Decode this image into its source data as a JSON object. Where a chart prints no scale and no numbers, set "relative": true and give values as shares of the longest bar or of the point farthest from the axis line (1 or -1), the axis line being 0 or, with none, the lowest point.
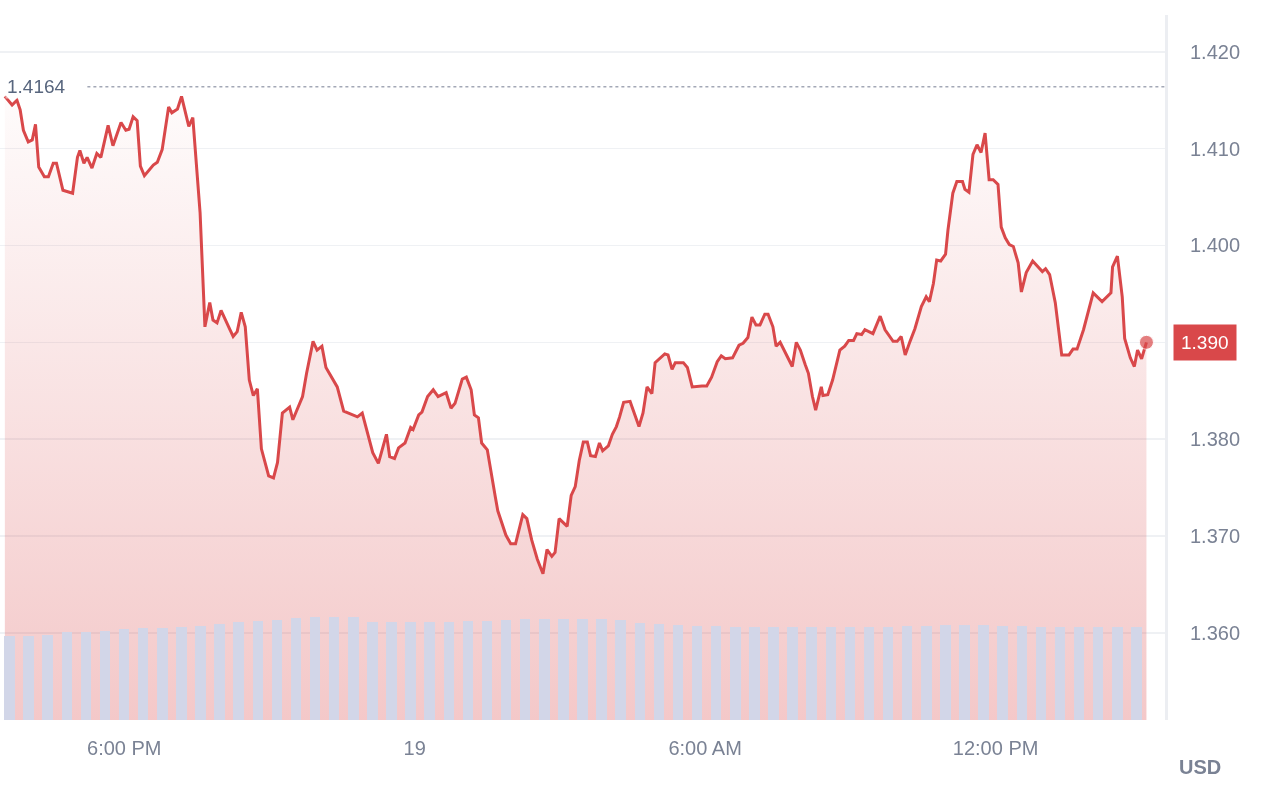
{
  "chart_data": [
    {
      "type": "area",
      "x": [
        "--03-18T15:32",
        "--03-18T15:41",
        "--03-18T15:47",
        "--03-18T15:51",
        "--03-18T15:55",
        "--03-18T16:01",
        "--03-18T16:06",
        "--03-18T16:10",
        "--03-18T16:14",
        "--03-18T16:21",
        "--03-18T16:26",
        "--03-18T16:32",
        "--03-18T16:36",
        "--03-18T16:44",
        "--03-18T16:56",
        "--03-18T17:02",
        "--03-18T17:05",
        "--03-18T17:10",
        "--03-18T17:14",
        "--03-18T17:20",
        "--03-18T17:26",
        "--03-18T17:31",
        "--03-18T17:40",
        "--03-18T17:46",
        "--03-18T17:56",
        "--03-18T18:02",
        "--03-18T18:06",
        "--03-18T18:11",
        "--03-18T18:16",
        "--03-18T18:20",
        "--03-18T18:25",
        "--03-18T18:36",
        "--03-18T18:41",
        "--03-18T18:47",
        "--03-18T18:55",
        "--03-18T18:59",
        "--03-18T19:06",
        "--03-18T19:11",
        "--03-18T19:20",
        "--03-18T19:25",
        "--03-18T19:34",
        "--03-18T19:40",
        "--03-18T19:46",
        "--03-18T19:50",
        "--03-18T19:55",
        "--03-18T20:00",
        "--03-18T20:11",
        "--03-18T20:15",
        "--03-18T20:20",
        "--03-18T20:25",
        "--03-18T20:30",
        "--03-18T20:35",
        "--03-18T20:40",
        "--03-18T20:45",
        "--03-18T20:50",
        "--03-18T20:59",
        "--03-18T21:05",
        "--03-18T21:10",
        "--03-18T21:16",
        "--03-18T21:25",
        "--03-18T21:29",
        "--03-18T21:41",
        "--03-18T21:46",
        "--03-18T21:54",
        "--03-18T21:59",
        "--03-18T22:05",
        "--03-18T22:10",
        "--03-18T22:24",
        "--03-18T22:32",
        "--03-18T22:49",
        "--03-18T22:55",
        "--03-18T23:08",
        "--03-18T23:15",
        "--03-18T23:25",
        "--03-18T23:29",
        "--03-18T23:35",
        "--03-18T23:40",
        "--03-18T23:48",
        "--03-18T23:55",
        "--03-18T23:58",
        "--03-19T00:05",
        "--03-19T00:09",
        "--03-19T00:16",
        "--03-19T00:23",
        "--03-19T00:29",
        "--03-19T00:39",
        "--03-19T00:45",
        "--03-19T00:50",
        "--03-19T00:59",
        "--03-19T01:04",
        "--03-19T01:10",
        "--03-19T01:14",
        "--03-19T01:19",
        "--03-19T01:23",
        "--03-19T01:30",
        "--03-19T01:40",
        "--03-19T01:43",
        "--03-19T01:53",
        "--03-19T01:59",
        "--03-19T02:05",
        "--03-19T02:14",
        "--03-19T02:19",
        "--03-19T02:25",
        "--03-19T02:32",
        "--03-19T02:39",
        "--03-19T02:44",
        "--03-19T02:50",
        "--03-19T02:54",
        "--03-19T02:59",
        "--03-19T03:09",
        "--03-19T03:14",
        "--03-19T03:19",
        "--03-19T03:24",
        "--03-19T03:29",
        "--03-19T03:34",
        "--03-19T03:38",
        "--03-19T03:44",
        "--03-19T03:49",
        "--03-19T03:53",
        "--03-19T04:00",
        "--03-19T04:05",
        "--03-19T04:10",
        "--03-19T04:14",
        "--03-19T04:19",
        "--03-19T04:27",
        "--03-19T04:38",
        "--03-19T04:43",
        "--03-19T04:48",
        "--03-19T04:54",
        "--03-19T04:58",
        "--03-19T05:10",
        "--03-19T05:14",
        "--03-19T05:19",
        "--03-19T05:23",
        "--03-19T05:33",
        "--03-19T05:38",
        "--03-19T05:44",
        "--03-19T05:56",
        "--03-19T06:02",
        "--03-19T06:08",
        "--03-19T06:15",
        "--03-19T06:20",
        "--03-19T06:25",
        "--03-19T06:34",
        "--03-19T06:42",
        "--03-19T06:47",
        "--03-19T06:53",
        "--03-19T06:58",
        "--03-19T07:03",
        "--03-19T07:08",
        "--03-19T07:14",
        "--03-19T07:18",
        "--03-19T07:24",
        "--03-19T07:28",
        "--03-19T07:33",
        "--03-19T07:48",
        "--03-19T07:53",
        "--03-19T07:58",
        "--03-19T08:04",
        "--03-19T08:08",
        "--03-19T08:13",
        "--03-19T08:17",
        "--03-19T08:24",
        "--03-19T08:26",
        "--03-19T08:32",
        "--03-19T08:38",
        "--03-19T08:47",
        "--03-19T08:53",
        "--03-19T08:58",
        "--03-19T09:04",
        "--03-19T09:08",
        "--03-19T09:14",
        "--03-19T09:18",
        "--03-19T09:28",
        "--03-19T09:37",
        "--03-19T09:43",
        "--03-19T09:53",
        "--03-19T09:58",
        "--03-19T10:03",
        "--03-19T10:08",
        "--03-19T10:14",
        "--03-19T10:20",
        "--03-19T10:28",
        "--03-19T10:34",
        "--03-19T10:38",
        "--03-19T10:43",
        "--03-19T10:47",
        "--03-19T10:52",
        "--03-19T10:58",
        "--03-19T11:01",
        "--03-19T11:07",
        "--03-19T11:12",
        "--03-19T11:19",
        "--03-19T11:22",
        "--03-19T11:27",
        "--03-19T11:32",
        "--03-19T11:37",
        "--03-19T11:42",
        "--03-19T11:47",
        "--03-19T11:52",
        "--03-19T11:57",
        "--03-19T12:03",
        "--03-19T12:07",
        "--03-19T12:12",
        "--03-19T12:17",
        "--03-19T12:22",
        "--03-19T12:28",
        "--03-19T12:32",
        "--03-19T12:38",
        "--03-19T12:46",
        "--03-19T12:58",
        "--03-19T13:02",
        "--03-19T13:07",
        "--03-19T13:14",
        "--03-19T13:22",
        "--03-19T13:31",
        "--03-19T13:36",
        "--03-19T13:41",
        "--03-19T13:49",
        "--03-19T14:01",
        "--03-19T14:12",
        "--03-19T14:23",
        "--03-19T14:25",
        "--03-19T14:31",
        "--03-19T14:37",
        "--03-19T14:40",
        "--03-19T14:47",
        "--03-19T14:52",
        "--03-19T14:56",
        "--03-19T15:01",
        "--03-19T15:07"
      ],
      "series": [
        {
          "color": "#d9484a",
          "values": [
            1.4154,
            1.4145,
            1.415,
            1.414,
            1.4119,
            1.4107,
            1.4109,
            1.4125,
            1.4081,
            1.4071,
            1.4071,
            1.4085,
            1.4085,
            1.4057,
            1.4054,
            1.4091,
            1.4098,
            1.4085,
            1.4091,
            1.408,
            1.4095,
            1.4091,
            1.4124,
            1.4103,
            1.4127,
            1.4119,
            1.412,
            1.4133,
            1.4129,
            1.4082,
            1.4072,
            1.4083,
            1.4086,
            1.4099,
            1.4143,
            1.4137,
            1.4141,
            1.4154,
            1.4123,
            1.4132,
            1.4034,
            1.3916,
            1.3941,
            1.3923,
            1.392,
            1.3933,
            1.3913,
            1.3906,
            1.3911,
            1.3931,
            1.3916,
            1.3861,
            1.3845,
            1.3852,
            1.379,
            1.3762,
            1.376,
            1.3776,
            1.3827,
            1.3833,
            1.382,
            1.3844,
            1.3868,
            1.3901,
            1.3892,
            1.3896,
            1.3874,
            1.3854,
            1.3829,
            1.3823,
            1.3827,
            1.3786,
            1.3775,
            1.3805,
            1.3782,
            1.378,
            1.3791,
            1.3796,
            1.3812,
            1.381,
            1.3825,
            1.3828,
            1.3844,
            1.3851,
            1.3844,
            1.3848,
            1.3832,
            1.3837,
            1.3862,
            1.3864,
            1.3851,
            1.3825,
            1.3822,
            1.3796,
            1.3789,
            1.374,
            1.3726,
            1.3701,
            1.3692,
            1.3692,
            1.3722,
            1.3718,
            1.3696,
            1.3676,
            1.3661,
            1.3686,
            1.3679,
            1.3683,
            1.3718,
            1.371,
            1.3742,
            1.3751,
            1.3778,
            1.3797,
            1.3797,
            1.3783,
            1.3782,
            1.3796,
            1.3788,
            1.3793,
            1.3805,
            1.3813,
            1.3823,
            1.3838,
            1.3839,
            1.3813,
            1.3827,
            1.3854,
            1.3847,
            1.3879,
            1.3888,
            1.3887,
            1.3872,
            1.3879,
            1.3879,
            1.3874,
            1.3854,
            1.3855,
            1.3855,
            1.3864,
            1.388,
            1.3886,
            1.3883,
            1.3884,
            1.3897,
            1.3899,
            1.3905,
            1.3926,
            1.3918,
            1.3918,
            1.3929,
            1.3929,
            1.3916,
            1.3896,
            1.39,
            1.3875,
            1.39,
            1.3892,
            1.3877,
            1.3868,
            1.3844,
            1.383,
            1.3854,
            1.3845,
            1.3846,
            1.3861,
            1.3892,
            1.3896,
            1.3902,
            1.3902,
            1.3909,
            1.3908,
            1.3913,
            1.3909,
            1.3927,
            1.3913,
            1.3901,
            1.3901,
            1.3906,
            1.3887,
            1.3901,
            1.3914,
            1.3937,
            1.3947,
            1.3942,
            1.3961,
            1.3985,
            1.3984,
            1.3991,
            1.4016,
            1.4054,
            1.4066,
            1.4066,
            1.4058,
            1.4055,
            1.4094,
            1.4104,
            1.4096,
            1.4116,
            1.4068,
            1.4068,
            1.4063,
            1.4019,
            1.4008,
            1.4001,
            1.3999,
            1.3982,
            1.3952,
            1.3972,
            1.3984,
            1.3973,
            1.3976,
            1.397,
            1.3941,
            1.3887,
            1.3887,
            1.3893,
            1.3893,
            1.3913,
            1.3951,
            1.3942,
            1.3951,
            1.3978,
            1.3989,
            1.3947,
            1.3904,
            1.3884,
            1.3875,
            1.3892,
            1.3883,
            1.39
          ]
        }
      ],
      "xlim": [
        "--03-18T15:26",
        "--03-19T15:30"
      ],
      "xticks": [
        {
          "value": "--03-18T18:00",
          "label": "6:00 PM"
        },
        {
          "value": "--03-19T00:00",
          "label": "19"
        },
        {
          "value": "--03-19T06:00",
          "label": "6:00 AM"
        },
        {
          "value": "--03-19T12:00",
          "label": "12:00 PM"
        }
      ],
      "ylim": [
        1.351,
        1.4238
      ],
      "yticks": [
        {
          "value": 1.36,
          "label": "1.360"
        },
        {
          "value": 1.37,
          "label": "1.370"
        },
        {
          "value": 1.38,
          "label": "1.380"
        },
        {
          "value": 1.39,
          "label": null
        },
        {
          "value": 1.4,
          "label": "1.400"
        },
        {
          "value": 1.41,
          "label": "1.410"
        },
        {
          "value": 1.42,
          "label": "1.420"
        }
      ],
      "grid": "y",
      "line_style": "solid",
      "ref_lines": [
        {
          "axis": "y",
          "value": 1.4164,
          "label": "1.4164",
          "color": "#a3a8b6",
          "line_style": "dotted"
        }
      ],
      "annotations": [
        "1.390",
        "USD"
      ]
    },
    {
      "type": "bar",
      "relative": true,
      "grid": false,
      "tick_labels": false,
      "categories": [
        null,
        null,
        null,
        null,
        null,
        null,
        null,
        null,
        null,
        null,
        null,
        null,
        null,
        null,
        null,
        null,
        null,
        null,
        null,
        null,
        null,
        null,
        null,
        null,
        null,
        null,
        null,
        null,
        null,
        null,
        null,
        null,
        null,
        null,
        null,
        null,
        null,
        null,
        null,
        null,
        null,
        null,
        null,
        null,
        null,
        null,
        null,
        null,
        null,
        null,
        null,
        null,
        null,
        null,
        null,
        null,
        null,
        null,
        null,
        null
      ],
      "color": "#d2d6e8",
      "values": [
        0.82,
        0.82,
        0.83,
        0.85,
        0.85,
        0.86,
        0.88,
        0.89,
        0.89,
        0.9,
        0.91,
        0.93,
        0.95,
        0.96,
        0.97,
        0.99,
        1,
        1,
        1,
        0.95,
        0.95,
        0.95,
        0.95,
        0.95,
        0.96,
        0.96,
        0.97,
        0.98,
        0.98,
        0.98,
        0.98,
        0.98,
        0.97,
        0.94,
        0.93,
        0.92,
        0.91,
        0.91,
        0.9,
        0.9,
        0.9,
        0.9,
        0.9,
        0.9,
        0.9,
        0.9,
        0.9,
        0.91,
        0.91,
        0.92,
        0.92,
        0.92,
        0.91,
        0.91,
        0.9,
        0.9,
        0.9,
        0.9,
        0.9,
        0.9
      ]
    }
  ]
}
